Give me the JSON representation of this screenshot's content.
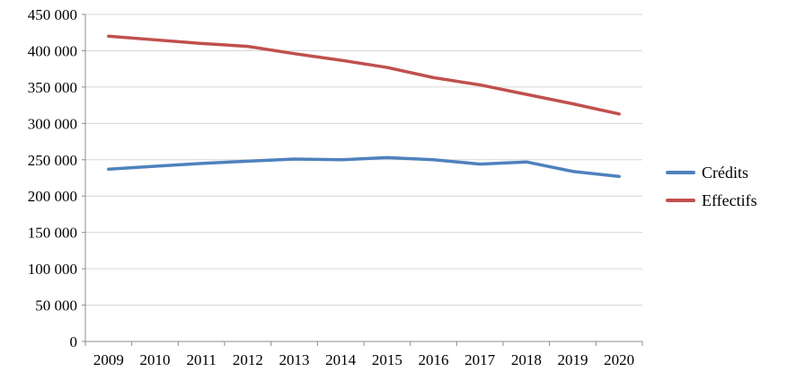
{
  "chart_data": {
    "type": "line",
    "title": "",
    "xlabel": "",
    "ylabel": "",
    "categories": [
      "2009",
      "2010",
      "2011",
      "2012",
      "2013",
      "2014",
      "2015",
      "2016",
      "2017",
      "2018",
      "2019",
      "2020"
    ],
    "series": [
      {
        "name": "Crédits",
        "color": "#4F81BD",
        "values": [
          237000,
          241000,
          245000,
          248000,
          251000,
          250000,
          253000,
          250000,
          244000,
          247000,
          234000,
          227000
        ]
      },
      {
        "name": "Effectifs",
        "color": "#C0504D",
        "values": [
          420000,
          415000,
          410000,
          406000,
          396000,
          387000,
          377000,
          363000,
          353000,
          340000,
          327000,
          313000
        ]
      }
    ],
    "ylim": [
      0,
      450000
    ],
    "ytick_step": 50000,
    "ytick_labels": [
      "0",
      "50 000",
      "100 000",
      "150 000",
      "200 000",
      "250 000",
      "300 000",
      "350 000",
      "400 000",
      "450 000"
    ],
    "grid": true,
    "grid_color": "#D6D6D6",
    "axis_color": "#8C8C8C",
    "legend_position": "right"
  }
}
